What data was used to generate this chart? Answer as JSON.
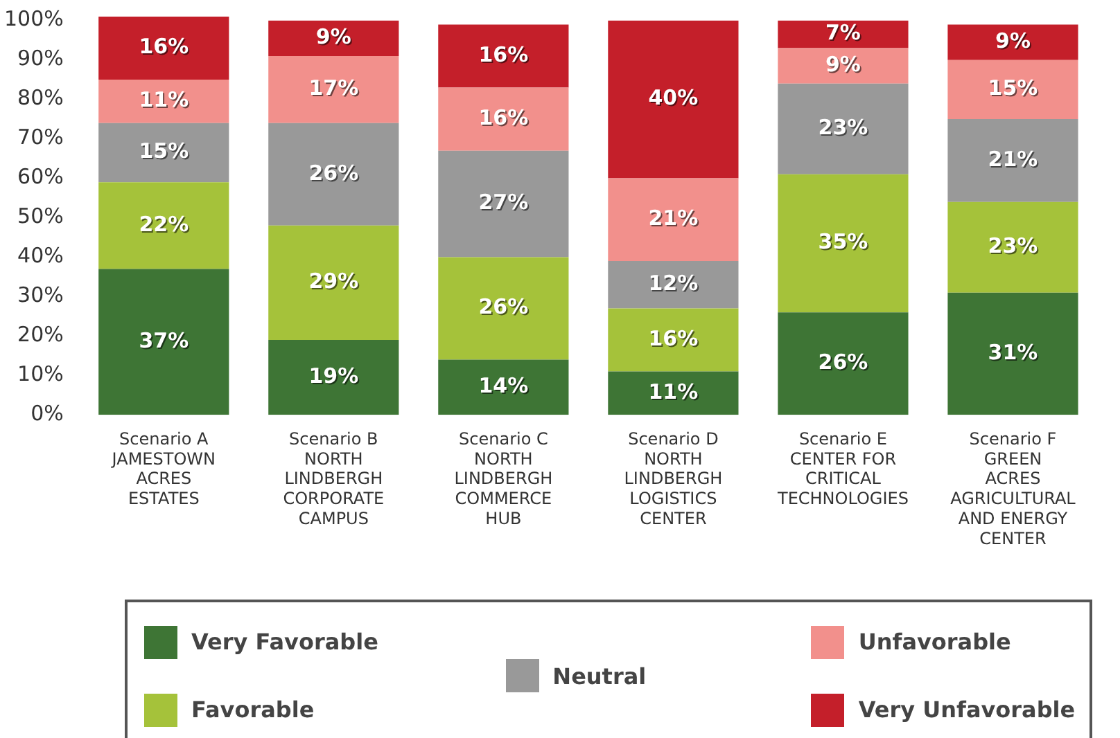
{
  "chart_data": {
    "type": "bar",
    "stacked": true,
    "categories": [
      "Scenario A\nJAMESTOWN\nACRES\nESTATES",
      "Scenario B\nNORTH\nLINDBERGH\nCORPORATE\nCAMPUS",
      "Scenario C\nNORTH\nLINDBERGH\nCOMMERCE\nHUB",
      "Scenario D\nNORTH\nLINDBERGH\nLOGISTICS\nCENTER",
      "Scenario E\nCENTER FOR\nCRITICAL\nTECHNOLOGIES",
      "Scenario F\nGREEN\nACRES\nAGRICULTURAL\nAND ENERGY\nCENTER"
    ],
    "series": [
      {
        "name": "Very Favorable",
        "color": "#3e7535",
        "values": [
          37,
          19,
          14,
          11,
          26,
          31
        ],
        "value_labels": [
          "37%",
          "19%",
          "14%",
          "11%",
          "26%",
          "31%"
        ]
      },
      {
        "name": "Favorable",
        "color": "#a5c23a",
        "values": [
          22,
          29,
          26,
          16,
          35,
          23
        ],
        "value_labels": [
          "22%",
          "29%",
          "26%",
          "16%",
          "35%",
          "23%"
        ]
      },
      {
        "name": "Neutral",
        "color": "#999999",
        "values": [
          15,
          26,
          27,
          12,
          23,
          21
        ],
        "value_labels": [
          "15%",
          "26%",
          "27%",
          "12%",
          "23%",
          "21%"
        ]
      },
      {
        "name": "Unfavorable",
        "color": "#f2908c",
        "values": [
          11,
          17,
          16,
          21,
          9,
          15
        ],
        "value_labels": [
          "11%",
          "17%",
          "16%",
          "21%",
          "9%",
          "15%"
        ]
      },
      {
        "name": "Very Unfavorable",
        "color": "#c41f2a",
        "values": [
          16,
          9,
          16,
          40,
          7,
          9
        ],
        "value_labels": [
          "16%",
          "9%",
          "16%",
          "40%",
          "7%",
          "9%"
        ]
      }
    ],
    "ylim": [
      0,
      101
    ],
    "yticks": [
      {
        "value": 0,
        "label": "0%"
      },
      {
        "value": 10,
        "label": "10%"
      },
      {
        "value": 20,
        "label": "20%"
      },
      {
        "value": 30,
        "label": "30%"
      },
      {
        "value": 40,
        "label": "40%"
      },
      {
        "value": 50,
        "label": "50%"
      },
      {
        "value": 60,
        "label": "60%"
      },
      {
        "value": 70,
        "label": "70%"
      },
      {
        "value": 80,
        "label": "80%"
      },
      {
        "value": 90,
        "label": "90%"
      },
      {
        "value": 100,
        "label": "100%"
      }
    ],
    "grid": false,
    "legend": "bottom"
  }
}
